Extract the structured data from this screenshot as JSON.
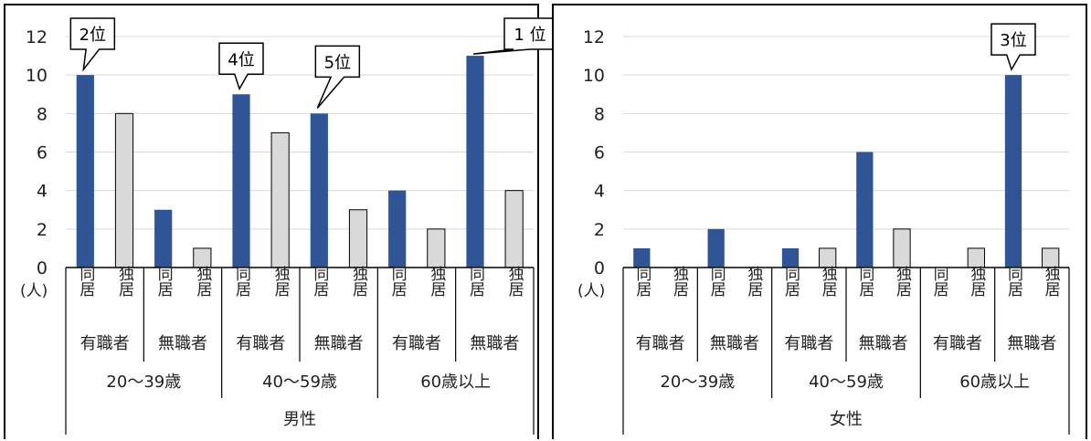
{
  "colors": {
    "cohabit": "#2f5597",
    "alone": "#d9d9d9",
    "grid": "#d9d9d9",
    "axis": "#000000"
  },
  "chart_data": [
    {
      "type": "bar",
      "panel": "male",
      "sex_label": "男性",
      "unit_label": "(人)",
      "ylim": [
        0,
        12
      ],
      "yticks": [
        "0",
        "2",
        "4",
        "6",
        "8",
        "10",
        "12"
      ],
      "age_groups": [
        "20～39歳",
        "40～59歳",
        "60歳以上"
      ],
      "employment": [
        "有職者",
        "無職者",
        "有職者",
        "無職者",
        "有職者",
        "無職者"
      ],
      "living": [
        "同居",
        "独居",
        "同居",
        "独居",
        "同居",
        "独居",
        "同居",
        "独居",
        "同居",
        "独居",
        "同居",
        "独居"
      ],
      "values": [
        10,
        8,
        3,
        1,
        9,
        7,
        8,
        3,
        4,
        2,
        11,
        4
      ],
      "callouts": [
        {
          "bar": 0,
          "text": "2位"
        },
        {
          "bar": 4,
          "text": "4位"
        },
        {
          "bar": 6,
          "text": "5位"
        },
        {
          "bar": 10,
          "text": "1 位"
        }
      ]
    },
    {
      "type": "bar",
      "panel": "female",
      "sex_label": "女性",
      "unit_label": "(人)",
      "ylim": [
        0,
        12
      ],
      "yticks": [
        "0",
        "2",
        "4",
        "6",
        "8",
        "10",
        "12"
      ],
      "age_groups": [
        "20～39歳",
        "40～59歳",
        "60歳以上"
      ],
      "employment": [
        "有職者",
        "無職者",
        "有職者",
        "無職者",
        "有職者",
        "無職者"
      ],
      "living": [
        "同居",
        "独居",
        "同居",
        "独居",
        "同居",
        "独居",
        "同居",
        "独居",
        "同居",
        "独居",
        "同居",
        "独居"
      ],
      "values": [
        1,
        0,
        2,
        0,
        1,
        1,
        6,
        2,
        0,
        1,
        10,
        1
      ],
      "callouts": [
        {
          "bar": 10,
          "text": "3位"
        }
      ]
    }
  ]
}
